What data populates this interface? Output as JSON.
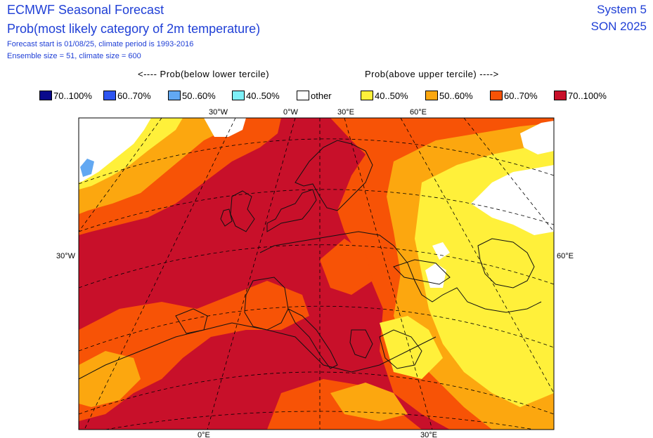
{
  "header": {
    "title": "ECMWF Seasonal Forecast",
    "subtitle": "Prob(most likely category of 2m temperature)",
    "forecast_info": "Forecast start is 01/08/25, climate period is 1993-2016",
    "ensemble_info": "Ensemble size = 51, climate size = 600",
    "system": "System 5",
    "period": "SON 2025"
  },
  "legend": {
    "below_header": "<---- Prob(below lower tercile)",
    "above_header": "Prob(above upper tercile) ---->",
    "items": [
      {
        "label": "70..100%",
        "color": "#0a0a8c"
      },
      {
        "label": "60..70%",
        "color": "#2e55f0"
      },
      {
        "label": "50..60%",
        "color": "#62a8f2"
      },
      {
        "label": "40..50%",
        "color": "#7ef0f8"
      },
      {
        "label": "other",
        "color": "#ffffff"
      },
      {
        "label": "40..50%",
        "color": "#fff03a"
      },
      {
        "label": "50..60%",
        "color": "#fca70f"
      },
      {
        "label": "60..70%",
        "color": "#f75306"
      },
      {
        "label": "70..100%",
        "color": "#c8102a"
      }
    ]
  },
  "map": {
    "top_lon_labels": [
      "30°W",
      "0°W",
      "30°E",
      "60°E"
    ],
    "bottom_lon_labels": [
      "0°E",
      "30°E"
    ],
    "left_lat_label": "30°W",
    "right_lat_label": "60°E"
  }
}
